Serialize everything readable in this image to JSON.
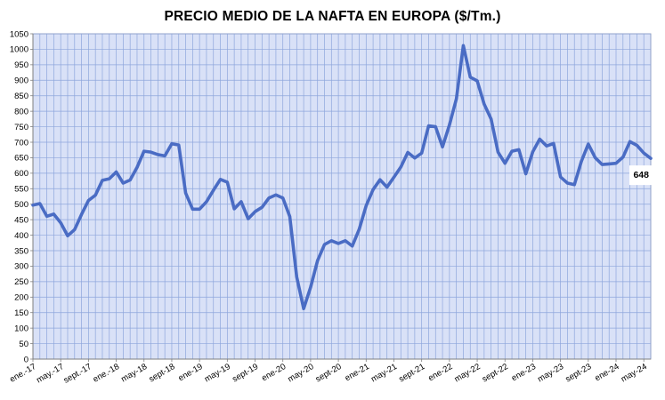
{
  "chart_data": {
    "type": "line",
    "title": "PRECIO MEDIO DE LA NAFTA EN EUROPA ($/Tm.)",
    "xlabel": "",
    "ylabel": "",
    "ylim": [
      0,
      1050
    ],
    "y_ticks": [
      0,
      50,
      100,
      150,
      200,
      250,
      300,
      350,
      400,
      450,
      500,
      550,
      600,
      650,
      700,
      750,
      800,
      850,
      900,
      950,
      1000,
      1050
    ],
    "grid": true,
    "x_tick_labels": [
      "ene.-17",
      "may.-17",
      "sept.-17",
      "ene.-18",
      "may-18",
      "sept-18",
      "ene-19",
      "may-19",
      "sept-19",
      "ene-20",
      "may-20",
      "sept-20",
      "ene-21",
      "may-21",
      "sept-21",
      "ene-22",
      "may-22",
      "sept-22",
      "ene-23",
      "may-23",
      "sept-23",
      "ene-24",
      "may-24"
    ],
    "x_start": "2017-01",
    "end_label": "648",
    "line_color": "#4a6cc4",
    "plot_bg": "#d9e1f7",
    "grid_color": "#8ea6dc",
    "series": [
      {
        "values": [
          497,
          502,
          461,
          468,
          440,
          398,
          418,
          467,
          512,
          529,
          577,
          582,
          604,
          568,
          578,
          619,
          671,
          668,
          660,
          656,
          695,
          691,
          536,
          484,
          484,
          508,
          545,
          580,
          571,
          485,
          508,
          453,
          476,
          490,
          520,
          530,
          520,
          460,
          265,
          163,
          232,
          318,
          370,
          382,
          373,
          382,
          365,
          419,
          495,
          547,
          579,
          555,
          587,
          620,
          667,
          649,
          665,
          753,
          750,
          685,
          756,
          840,
          1012,
          910,
          898,
          823,
          775,
          668,
          632,
          671,
          676,
          598,
          669,
          710,
          688,
          696,
          588,
          568,
          563,
          638,
          694,
          650,
          628,
          630,
          632,
          652,
          702,
          690,
          665,
          648
        ]
      }
    ]
  }
}
